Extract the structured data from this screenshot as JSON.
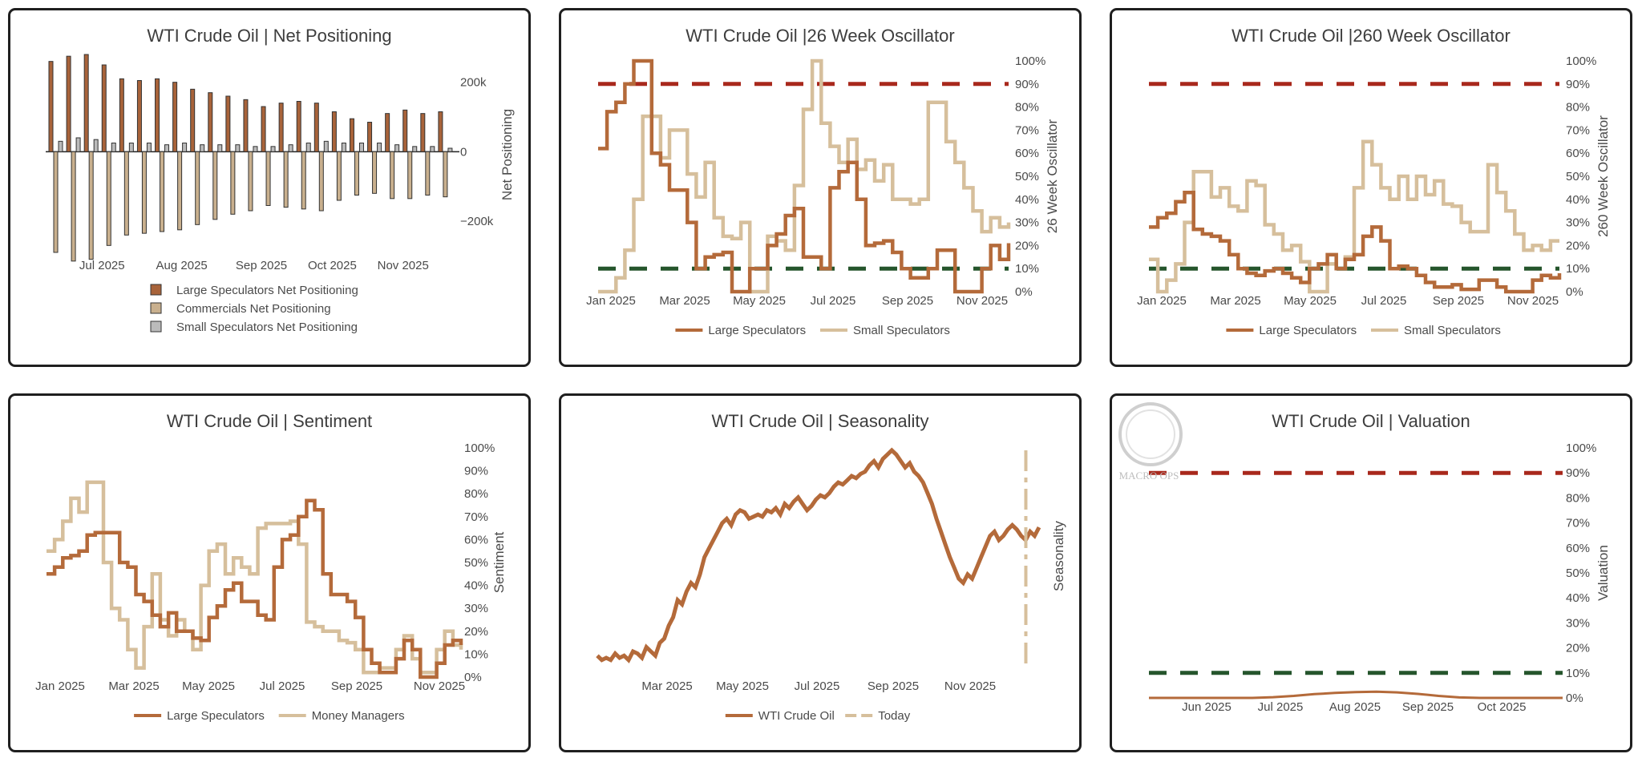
{
  "colors": {
    "large": "#b46a3a",
    "large_bar": "#a8633a",
    "small": "#d6bf9c",
    "comm_bar": "#c9b08e",
    "small_bar": "#bbbbbb",
    "red": "#a8281c",
    "green": "#25552c"
  },
  "watermark": {
    "text": "MACRO OPS"
  },
  "chart_data": [
    {
      "id": "net",
      "type": "bar",
      "title": "WTI Crude Oil | Net Positioning",
      "ylabel": "Net Positioning",
      "ylim": [
        -320000,
        280000
      ],
      "yticks": [
        200000,
        0,
        -200000
      ],
      "ytick_labels": [
        "200k",
        "0",
        "−200k"
      ],
      "xticks": [
        "Jul 2025",
        "Aug 2025",
        "Sep 2025",
        "Oct 2025",
        "Nov 2025"
      ],
      "xtick_weeks": [
        3,
        7.5,
        12,
        16,
        20
      ],
      "legend": [
        "Large Speculators Net Positioning",
        "Commercials Net Positioning",
        "Small Speculators Net Positioning"
      ],
      "series": [
        {
          "name": "Large Speculators Net Positioning",
          "values": [
            260000,
            275000,
            280000,
            250000,
            210000,
            205000,
            210000,
            200000,
            180000,
            170000,
            160000,
            150000,
            130000,
            140000,
            145000,
            140000,
            115000,
            95000,
            85000,
            110000,
            120000,
            110000,
            115000
          ]
        },
        {
          "name": "Commercials Net Positioning",
          "values": [
            -290000,
            -315000,
            -310000,
            -270000,
            -240000,
            -235000,
            -230000,
            -225000,
            -210000,
            -195000,
            -180000,
            -170000,
            -155000,
            -160000,
            -165000,
            -170000,
            -140000,
            -125000,
            -120000,
            -135000,
            -135000,
            -125000,
            -130000
          ]
        },
        {
          "name": "Small Speculators Net Positioning",
          "values": [
            30000,
            40000,
            35000,
            25000,
            25000,
            25000,
            20000,
            25000,
            20000,
            20000,
            20000,
            15000,
            15000,
            20000,
            25000,
            30000,
            25000,
            25000,
            25000,
            20000,
            15000,
            15000,
            10000
          ]
        }
      ]
    },
    {
      "id": "osc26",
      "type": "line",
      "title": "WTI Crude Oil |26 Week Oscillator",
      "ylabel": "26 Week Oscillator",
      "ylim": [
        0,
        100
      ],
      "yticks": [
        0,
        10,
        20,
        30,
        40,
        50,
        60,
        70,
        80,
        90,
        100
      ],
      "xticks": [
        "Jan 2025",
        "Mar 2025",
        "May 2025",
        "Jul 2025",
        "Sep 2025",
        "Nov 2025"
      ],
      "x_range": [
        0,
        45
      ],
      "hlines": [
        90,
        10
      ],
      "legend": [
        "Large Speculators",
        "Small Speculators"
      ],
      "series": [
        {
          "name": "Large Speculators",
          "values": [
            62,
            78,
            82,
            90,
            100,
            100,
            60,
            55,
            44,
            44,
            30,
            10,
            15,
            16,
            17,
            0,
            0,
            10,
            10,
            20,
            25,
            33,
            36,
            15,
            15,
            10,
            45,
            52,
            56,
            40,
            20,
            21,
            22,
            17,
            10,
            6,
            6,
            10,
            18,
            18,
            0,
            0,
            0,
            10,
            20,
            14,
            21
          ]
        },
        {
          "name": "Small Speculators",
          "values": [
            0,
            0,
            6,
            18,
            40,
            76,
            76,
            58,
            70,
            70,
            51,
            41,
            56,
            32,
            24,
            23,
            30,
            0,
            0,
            24,
            22,
            18,
            46,
            79,
            100,
            73,
            63,
            56,
            66,
            53,
            57,
            48,
            55,
            40,
            40,
            38,
            40,
            82,
            82,
            65,
            56,
            45,
            35,
            26,
            32,
            28,
            30
          ]
        }
      ]
    },
    {
      "id": "osc260",
      "type": "line",
      "title": "WTI Crude Oil |260 Week Oscillator",
      "ylabel": "260 Week Oscillator",
      "ylim": [
        0,
        100
      ],
      "yticks": [
        0,
        10,
        20,
        30,
        40,
        50,
        60,
        70,
        80,
        90,
        100
      ],
      "xticks": [
        "Jan 2025",
        "Mar 2025",
        "May 2025",
        "Jul 2025",
        "Sep 2025",
        "Nov 2025"
      ],
      "x_range": [
        0,
        45
      ],
      "hlines": [
        90,
        10
      ],
      "legend": [
        "Large Speculators",
        "Small Speculators"
      ],
      "series": [
        {
          "name": "Large Speculators",
          "values": [
            28,
            32,
            34,
            39,
            43,
            27,
            25,
            24,
            22,
            16,
            10,
            8,
            7,
            9,
            10,
            8,
            6,
            4,
            10,
            12,
            16,
            10,
            14,
            16,
            24,
            28,
            22,
            10,
            11,
            10,
            7,
            4,
            2,
            2,
            3,
            1,
            1,
            5,
            5,
            2,
            0,
            0,
            0,
            5,
            7,
            6,
            8
          ]
        },
        {
          "name": "Small Speculators",
          "values": [
            14,
            0,
            5,
            12,
            30,
            52,
            52,
            41,
            45,
            37,
            35,
            48,
            46,
            29,
            25,
            18,
            20,
            13,
            0,
            0,
            12,
            10,
            15,
            45,
            65,
            55,
            45,
            40,
            50,
            40,
            50,
            42,
            48,
            38,
            37,
            30,
            26,
            26,
            55,
            43,
            35,
            25,
            18,
            20,
            18,
            22,
            22
          ]
        }
      ]
    },
    {
      "id": "sent",
      "type": "line",
      "title": "WTI Crude Oil | Sentiment",
      "ylabel": "Sentiment",
      "ylim": [
        0,
        100
      ],
      "yticks": [
        0,
        10,
        20,
        30,
        40,
        50,
        60,
        70,
        80,
        90,
        100
      ],
      "xticks": [
        "Jan 2025",
        "Mar 2025",
        "May 2025",
        "Jul 2025",
        "Sep 2025",
        "Nov 2025"
      ],
      "x_range": [
        0,
        45
      ],
      "legend": [
        "Large Speculators",
        "Money Managers"
      ],
      "series": [
        {
          "name": "Large Speculators",
          "values": [
            45,
            48,
            52,
            53,
            55,
            62,
            63,
            63,
            63,
            50,
            48,
            36,
            33,
            27,
            22,
            28,
            20,
            20,
            17,
            16,
            26,
            31,
            38,
            41,
            33,
            33,
            27,
            25,
            48,
            60,
            62,
            70,
            77,
            73,
            45,
            36,
            36,
            33,
            26,
            12,
            6,
            2,
            2,
            8,
            16,
            12,
            0,
            0,
            6,
            14,
            16,
            14
          ]
        },
        {
          "name": "Money Managers",
          "values": [
            55,
            60,
            68,
            78,
            72,
            85,
            85,
            50,
            30,
            25,
            12,
            4,
            22,
            45,
            25,
            18,
            25,
            20,
            12,
            40,
            55,
            58,
            45,
            52,
            48,
            45,
            65,
            67,
            67,
            67,
            68,
            58,
            24,
            22,
            20,
            20,
            16,
            15,
            12,
            2,
            2,
            4,
            4,
            12,
            18,
            8,
            2,
            2,
            12,
            20,
            14,
            12
          ]
        }
      ]
    },
    {
      "id": "season",
      "type": "line",
      "title": "WTI Crude Oil | Seasonality",
      "ylabel": "Seasonality",
      "xticks": [
        "Mar 2025",
        "May 2025",
        "Jul 2025",
        "Sep 2025",
        "Nov 2025"
      ],
      "x_range": [
        0,
        100
      ],
      "ylim": [
        0,
        100
      ],
      "today_x": 97,
      "legend": [
        "WTI Crude Oil",
        "Today"
      ],
      "series": [
        {
          "name": "WTI Crude Oil",
          "values": [
            4,
            2,
            3,
            2,
            5,
            3,
            4,
            2,
            6,
            5,
            3,
            8,
            6,
            4,
            10,
            12,
            18,
            22,
            30,
            28,
            34,
            38,
            36,
            42,
            50,
            54,
            58,
            62,
            66,
            68,
            65,
            70,
            72,
            71,
            68,
            69,
            70,
            69,
            72,
            71,
            73,
            70,
            75,
            73,
            76,
            78,
            75,
            72,
            74,
            77,
            79,
            78,
            80,
            83,
            85,
            84,
            86,
            88,
            87,
            89,
            90,
            93,
            95,
            92,
            96,
            98,
            100,
            98,
            95,
            92,
            94,
            90,
            88,
            85,
            80,
            75,
            68,
            62,
            56,
            50,
            45,
            40,
            38,
            42,
            40,
            45,
            50,
            55,
            60,
            62,
            58,
            60,
            63,
            65,
            63,
            60,
            58,
            62,
            60,
            64
          ]
        }
      ]
    },
    {
      "id": "val",
      "type": "line",
      "title": "WTI Crude Oil | Valuation",
      "ylabel": "Valuation",
      "ylim": [
        0,
        100
      ],
      "yticks": [
        0,
        10,
        20,
        30,
        40,
        50,
        60,
        70,
        80,
        90,
        100
      ],
      "xticks": [
        "Jun 2025",
        "Jul 2025",
        "Aug 2025",
        "Sep 2025",
        "Oct 2025"
      ],
      "x_range": [
        0,
        100
      ],
      "hlines": [
        90,
        10
      ],
      "series": [
        {
          "name": "WTI Crude Oil",
          "values": [
            0,
            0,
            0,
            0,
            0,
            0,
            0.3,
            0.8,
            1.5,
            2.0,
            2.3,
            2.5,
            2.2,
            1.6,
            0.8,
            0.2,
            0,
            0,
            0,
            0,
            0
          ]
        }
      ]
    }
  ]
}
